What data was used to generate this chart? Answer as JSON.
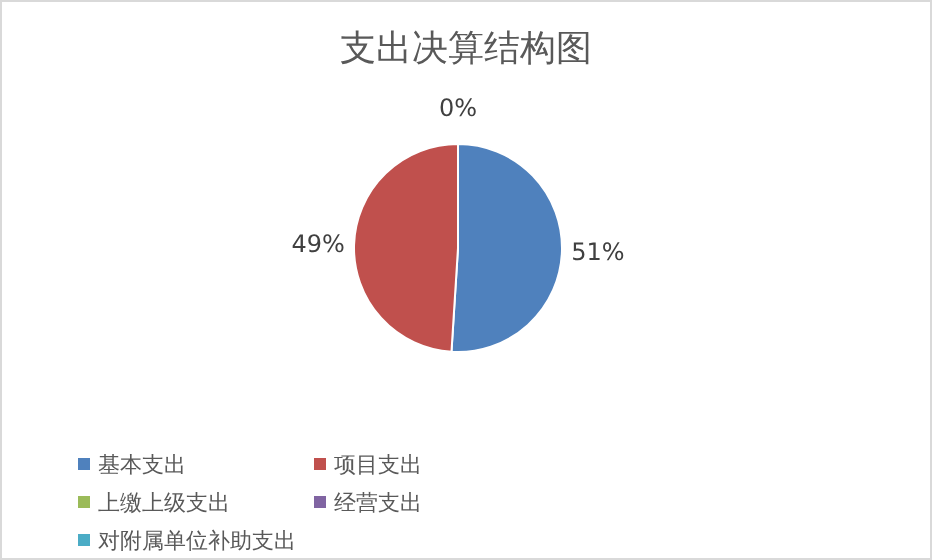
{
  "chart_data": {
    "type": "pie",
    "title": "支出决算结构图",
    "categories": [
      "基本支出",
      "项目支出",
      "上缴上级支出",
      "经营支出",
      "对附属单位补助支出"
    ],
    "values": [
      51,
      49,
      0,
      0,
      0
    ],
    "colors": [
      "#4f81bd",
      "#c0504d",
      "#9bbb59",
      "#8064a2",
      "#4bacc6"
    ],
    "value_labels": [
      "51%",
      "49%",
      "0%",
      null,
      null
    ],
    "legend": "bottom"
  }
}
